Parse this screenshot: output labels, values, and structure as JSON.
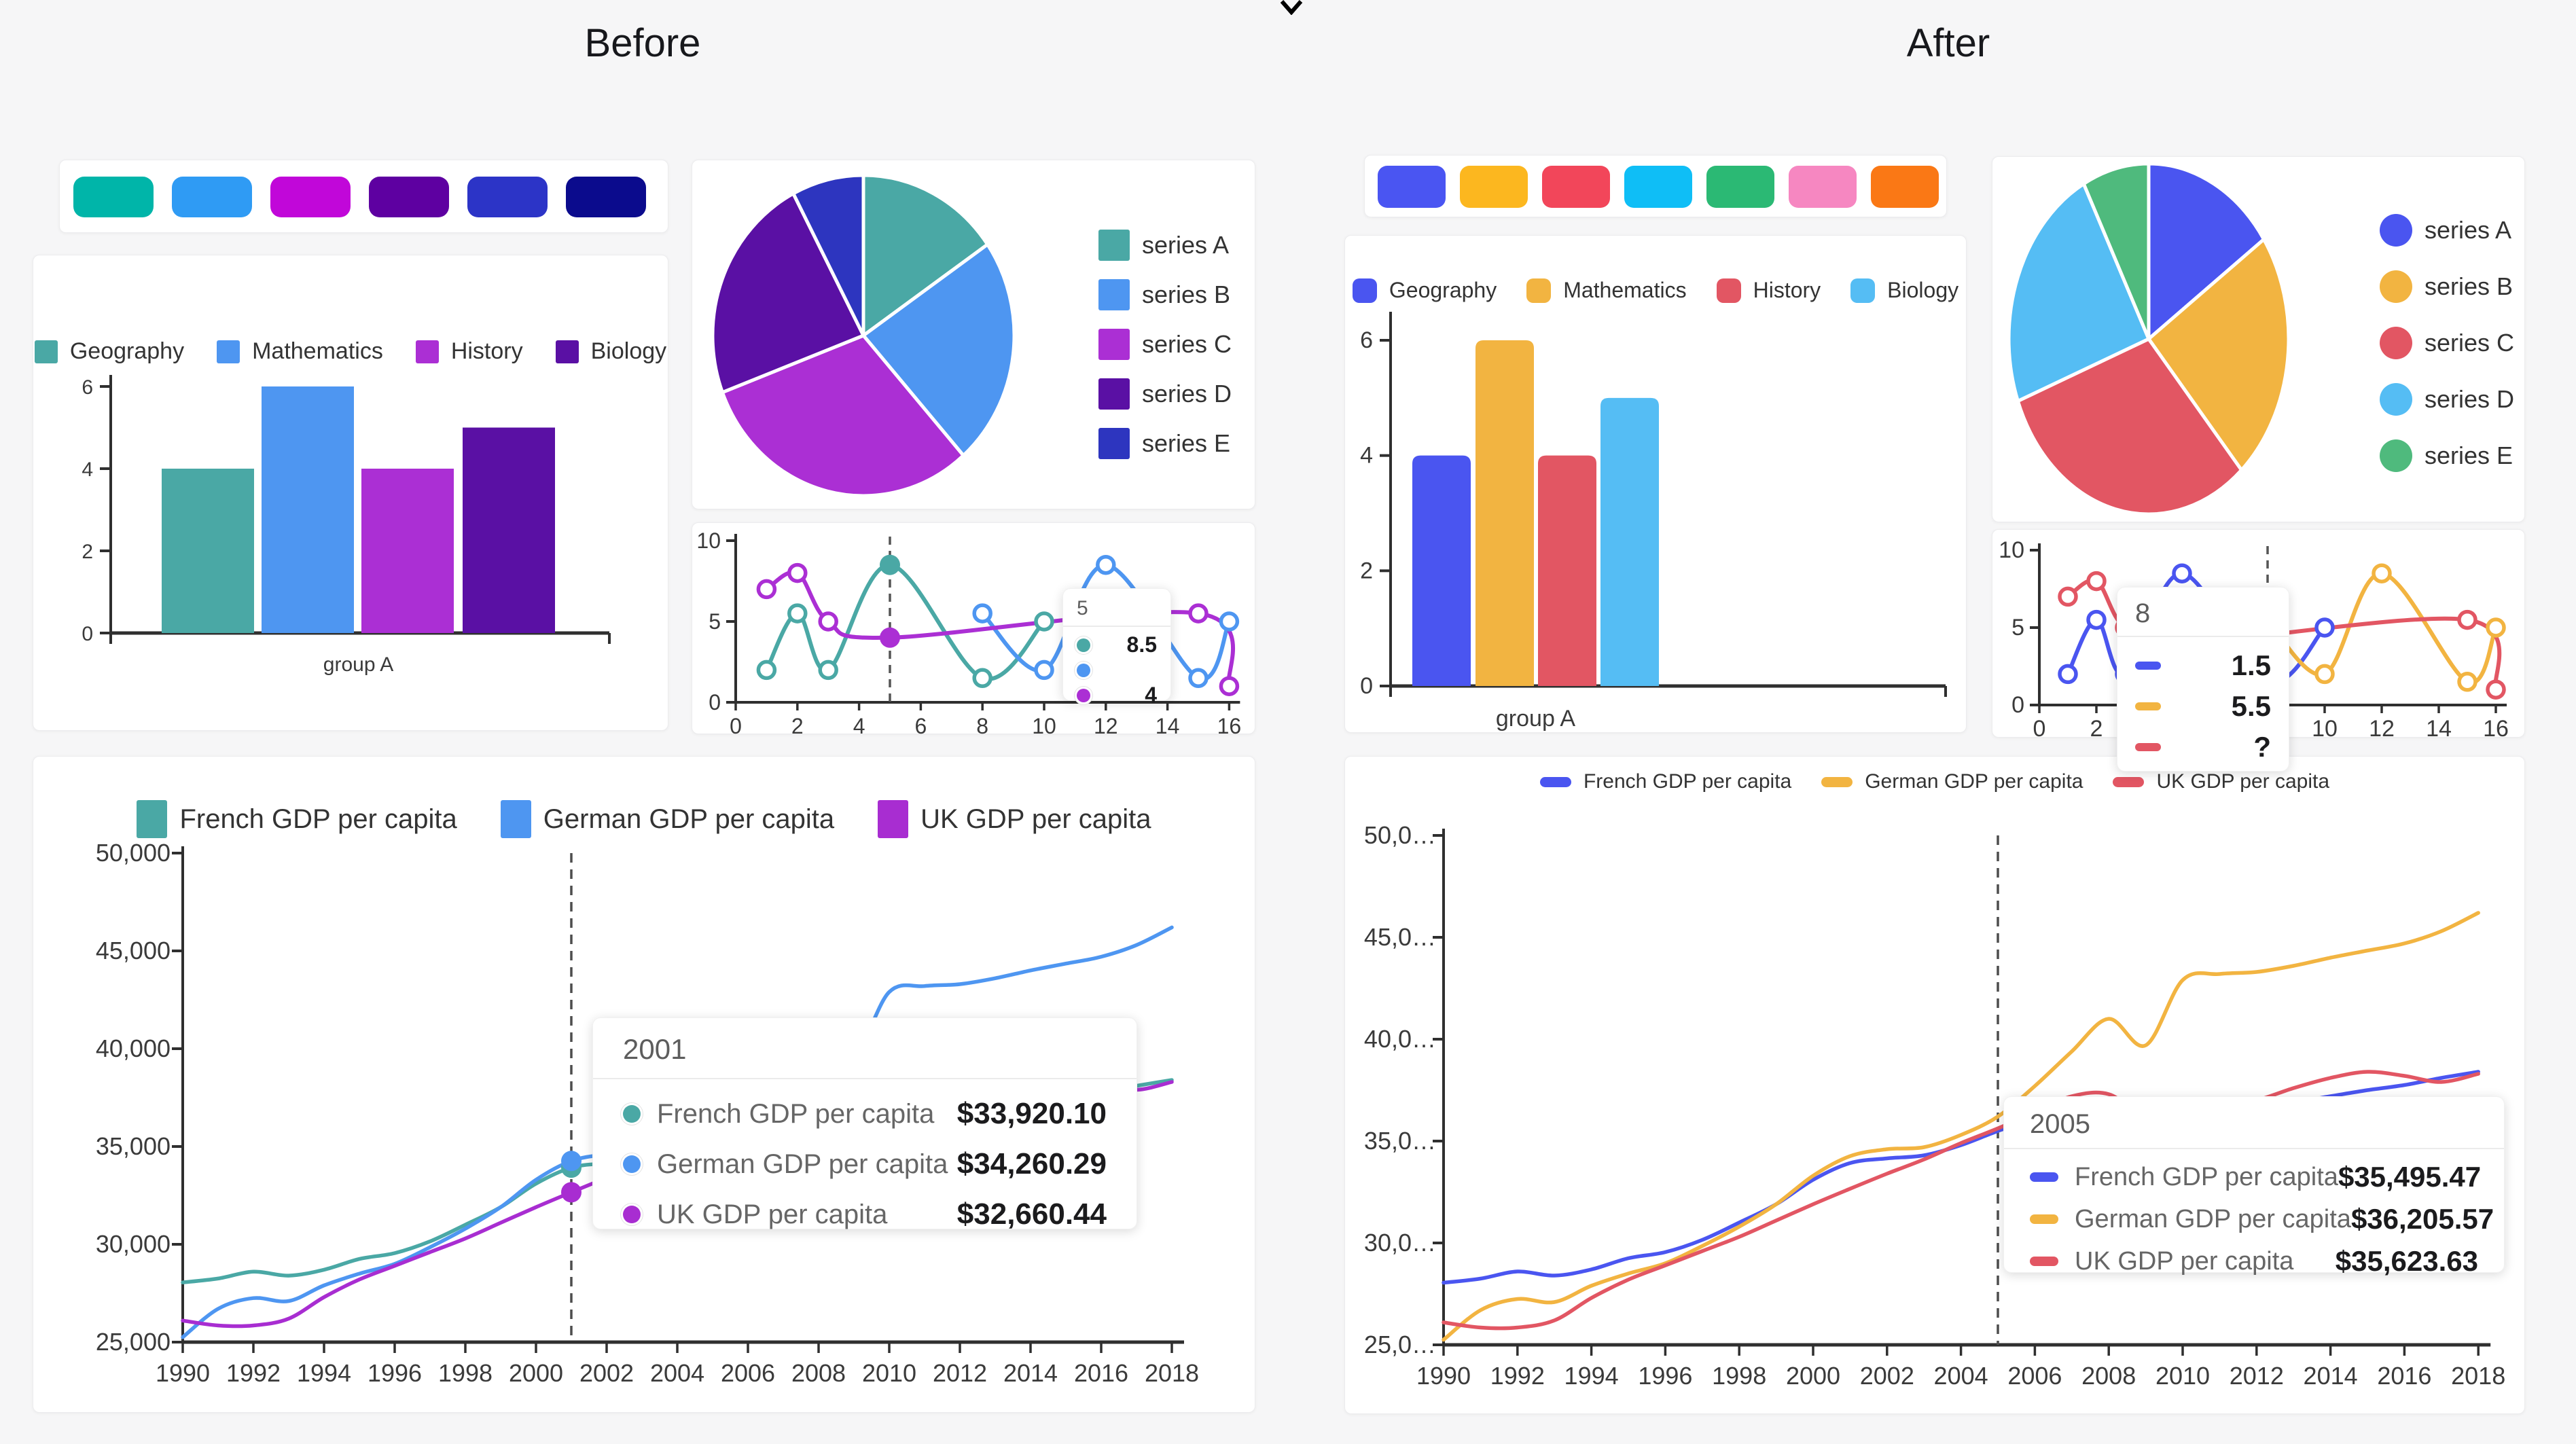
{
  "page": {
    "title_before": "Before",
    "title_after": "After"
  },
  "palettes": {
    "before_swatches": [
      "#00b5a9",
      "#2f9bf4",
      "#c107d9",
      "#5e00a1",
      "#2c34c7",
      "#0b0b8d"
    ],
    "after_swatches": [
      "#4a55f2",
      "#fcb71f",
      "#f2465a",
      "#0fbef6",
      "#2bb974",
      "#f687c1",
      "#fa7815"
    ]
  },
  "chart_data": [
    {
      "id": "before-bar",
      "type": "bar",
      "variant": "bar",
      "panel": "before",
      "categories": [
        "group A"
      ],
      "xlabel": "group A",
      "series": [
        {
          "name": "Geography",
          "value": 4,
          "color": "#4aa8a5"
        },
        {
          "name": "Mathematics",
          "value": 6,
          "color": "#4e96f1"
        },
        {
          "name": "History",
          "value": 4,
          "color": "#ab2fd4"
        },
        {
          "name": "Biology",
          "value": 5,
          "color": "#5a10a4"
        }
      ],
      "ylim": [
        0,
        6
      ],
      "yticks": [
        0,
        2,
        4,
        6
      ],
      "legend_position": "top"
    },
    {
      "id": "after-bar",
      "type": "bar",
      "variant": "bar",
      "panel": "after",
      "categories": [
        "group A"
      ],
      "xlabel": "group A",
      "series": [
        {
          "name": "Geography",
          "value": 4,
          "color": "#4a55f0"
        },
        {
          "name": "Mathematics",
          "value": 6,
          "color": "#f2b441"
        },
        {
          "name": "History",
          "value": 4,
          "color": "#e25663"
        },
        {
          "name": "Biology",
          "value": 5,
          "color": "#55bdf4"
        }
      ],
      "ylim": [
        0,
        6
      ],
      "yticks": [
        0,
        2,
        4,
        6
      ],
      "legend_position": "top"
    },
    {
      "id": "before-pie",
      "type": "pie",
      "variant": "pie",
      "panel": "before",
      "labels": [
        "series A",
        "series B",
        "series C",
        "series D",
        "series E"
      ],
      "values": [
        2,
        3,
        4,
        3,
        1
      ],
      "colors": [
        "#4aa8a5",
        "#4e96f1",
        "#ab2fd4",
        "#5a10a4",
        "#2d35bf"
      ],
      "legend_position": "right"
    },
    {
      "id": "after-pie",
      "type": "pie",
      "variant": "pie",
      "panel": "after",
      "labels": [
        "series A",
        "series B",
        "series C",
        "series D",
        "series E"
      ],
      "values": [
        2,
        3,
        4,
        3,
        1
      ],
      "colors": [
        "#4a55f0",
        "#f2b441",
        "#e25663",
        "#55bdf4",
        "#4fba7d"
      ],
      "legend_position": "right"
    },
    {
      "id": "before-line-small",
      "type": "line",
      "variant": "small",
      "panel": "before",
      "xlim": [
        0,
        16
      ],
      "xticks": [
        0,
        2,
        4,
        6,
        8,
        10,
        12,
        14,
        16
      ],
      "ylim": [
        0,
        10
      ],
      "yticks": [
        0,
        5,
        10
      ],
      "guide_x": 5,
      "series": [
        {
          "color": "#4aa8a5",
          "points": [
            [
              1,
              2
            ],
            [
              2,
              5.5
            ],
            [
              3,
              2
            ],
            [
              5,
              8.5
            ],
            [
              8,
              1.5
            ],
            [
              10,
              5
            ]
          ]
        },
        {
          "color": "#4e96f1",
          "points": [
            [
              8,
              5.5
            ],
            [
              10,
              2
            ],
            [
              12,
              8.5
            ],
            [
              15,
              1.5
            ],
            [
              16,
              5
            ]
          ]
        },
        {
          "color": "#ab2fd4",
          "points": [
            [
              1,
              7
            ],
            [
              2,
              8
            ],
            [
              3,
              5
            ],
            [
              5,
              4
            ],
            [
              15,
              5.5
            ],
            [
              16,
              1
            ]
          ]
        }
      ],
      "emphasis": [
        [
          0,
          3
        ],
        [
          2,
          3
        ]
      ],
      "tooltip": {
        "header": "5",
        "marker": "dot",
        "values": [
          "8.5",
          "",
          "4"
        ]
      }
    },
    {
      "id": "after-line-small",
      "type": "line",
      "variant": "small",
      "panel": "after",
      "xlim": [
        0,
        16
      ],
      "xticks": [
        0,
        2,
        4,
        6,
        8,
        10,
        12,
        14,
        16
      ],
      "ylim": [
        0,
        10
      ],
      "yticks": [
        0,
        5,
        10
      ],
      "guide_x": 8,
      "series": [
        {
          "color": "#4a55f0",
          "points": [
            [
              1,
              2
            ],
            [
              2,
              5.5
            ],
            [
              3,
              2
            ],
            [
              5,
              8.5
            ],
            [
              8,
              1.5
            ],
            [
              10,
              5
            ]
          ]
        },
        {
          "color": "#f2b441",
          "points": [
            [
              8,
              5.5
            ],
            [
              10,
              2
            ],
            [
              12,
              8.5
            ],
            [
              15,
              1.5
            ],
            [
              16,
              5
            ]
          ]
        },
        {
          "color": "#e25663",
          "points": [
            [
              1,
              7
            ],
            [
              2,
              8
            ],
            [
              3,
              5
            ],
            [
              5,
              4
            ],
            [
              15,
              5.5
            ],
            [
              16,
              1
            ]
          ]
        }
      ],
      "emphasis": [],
      "tooltip": {
        "header": "8",
        "marker": "pill",
        "values": [
          "1.5",
          "5.5",
          "?"
        ]
      }
    },
    {
      "id": "before-gdp",
      "type": "line",
      "variant": "gdp",
      "panel": "before",
      "x_start": 1990,
      "x_end": 2018,
      "xticks": [
        1990,
        1992,
        1994,
        1996,
        1998,
        2000,
        2002,
        2004,
        2006,
        2008,
        2010,
        2012,
        2014,
        2016,
        2018
      ],
      "ylim": [
        25000,
        50000
      ],
      "yticks": [
        25000,
        30000,
        35000,
        40000,
        45000,
        50000
      ],
      "ytick_labels": [
        "25,000",
        "30,000",
        "35,000",
        "40,000",
        "45,000",
        "50,000"
      ],
      "guide_x": 2001,
      "dots_at": 2001,
      "series": [
        {
          "name": "French GDP per capita",
          "color": "#4aa8a5",
          "values": [
            28050,
            28250,
            28600,
            28400,
            28700,
            29250,
            29550,
            30150,
            31000,
            31900,
            33100,
            33920,
            34150,
            34300,
            34800,
            35495,
            36100,
            36800,
            36900,
            35700,
            36300,
            36700,
            36750,
            36900,
            37200,
            37500,
            37750,
            38100,
            38400
          ]
        },
        {
          "name": "German GDP per capita",
          "color": "#4e96f1",
          "values": [
            25250,
            26700,
            27250,
            27100,
            27900,
            28500,
            29000,
            29850,
            30800,
            31900,
            33300,
            34260,
            34600,
            34700,
            35300,
            36205,
            37700,
            39400,
            41000,
            39700,
            42900,
            43200,
            43300,
            43600,
            44000,
            44350,
            44700,
            45300,
            46200
          ]
        },
        {
          "name": "UK GDP per capita",
          "color": "#a82dd1",
          "values": [
            26100,
            25850,
            25850,
            26200,
            27300,
            28200,
            28900,
            29600,
            30300,
            31100,
            31900,
            32660,
            33400,
            34100,
            34900,
            35623,
            36400,
            37200,
            37300,
            36200,
            36500,
            36700,
            37000,
            37600,
            38100,
            38400,
            38200,
            37900,
            38300
          ]
        }
      ],
      "tooltip": {
        "header": "2001",
        "marker": "dot",
        "rows": [
          {
            "label": "French GDP per capita",
            "value": "$33,920.10"
          },
          {
            "label": "German GDP per capita",
            "value": "$34,260.29"
          },
          {
            "label": "UK GDP per capita",
            "value": "$32,660.44"
          }
        ]
      }
    },
    {
      "id": "after-gdp",
      "type": "line",
      "variant": "gdp",
      "panel": "after",
      "x_start": 1990,
      "x_end": 2018,
      "xticks": [
        1990,
        1992,
        1994,
        1996,
        1998,
        2000,
        2002,
        2004,
        2006,
        2008,
        2010,
        2012,
        2014,
        2016,
        2018
      ],
      "ylim": [
        25000,
        50000
      ],
      "yticks": [
        25000,
        30000,
        35000,
        40000,
        45000,
        50000
      ],
      "ytick_labels": [
        "25,0…",
        "30,0…",
        "35,0…",
        "40,0…",
        "45,0…",
        "50,0…"
      ],
      "guide_x": 2005,
      "dots_at": null,
      "series": [
        {
          "name": "French GDP per capita",
          "color": "#4a55f0",
          "values": [
            28050,
            28250,
            28600,
            28400,
            28700,
            29250,
            29550,
            30150,
            31000,
            31900,
            33100,
            33920,
            34150,
            34300,
            34800,
            35495,
            36100,
            36800,
            36900,
            35700,
            36300,
            36700,
            36750,
            36900,
            37200,
            37500,
            37750,
            38100,
            38400
          ]
        },
        {
          "name": "German GDP per capita",
          "color": "#f2b441",
          "values": [
            25250,
            26700,
            27250,
            27100,
            27900,
            28500,
            29000,
            29850,
            30800,
            31900,
            33300,
            34260,
            34600,
            34700,
            35300,
            36205,
            37700,
            39400,
            41000,
            39700,
            42900,
            43200,
            43300,
            43600,
            44000,
            44350,
            44700,
            45300,
            46200
          ]
        },
        {
          "name": "UK GDP per capita",
          "color": "#e25663",
          "values": [
            26100,
            25850,
            25850,
            26200,
            27300,
            28200,
            28900,
            29600,
            30300,
            31100,
            31900,
            32660,
            33400,
            34100,
            34900,
            35623,
            36400,
            37200,
            37300,
            36200,
            36500,
            36700,
            37000,
            37600,
            38100,
            38400,
            38200,
            37900,
            38300
          ]
        }
      ],
      "tooltip": {
        "header": "2005",
        "marker": "pill",
        "rows": [
          {
            "label": "French GDP per capita",
            "value": "$35,495.47"
          },
          {
            "label": "German GDP per capita",
            "value": "$36,205.57"
          },
          {
            "label": "UK GDP per capita",
            "value": "$35,623.63"
          }
        ]
      }
    }
  ]
}
